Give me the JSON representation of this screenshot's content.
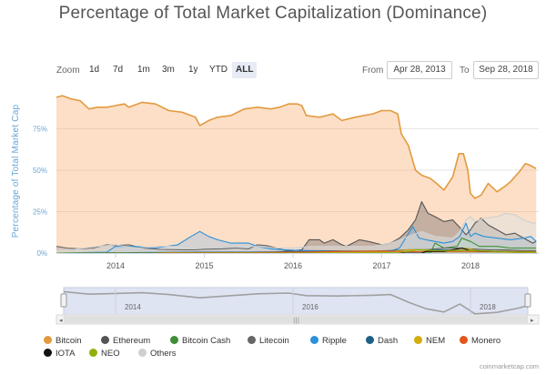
{
  "chart_data": {
    "type": "area",
    "title": "Percentage of Total Market Capitalization (Dominance)",
    "ylabel": "Percentage of Total Market Cap",
    "xlabel": "",
    "ylim": [
      0,
      100
    ],
    "yticks": [
      "0%",
      "25%",
      "50%",
      "75%"
    ],
    "xticks": [
      "2014",
      "2015",
      "2016",
      "2017",
      "2018"
    ],
    "navigator_ticks": [
      "2014",
      "2016",
      "2018"
    ],
    "legend_position": "bottom-left",
    "grid": true,
    "series": [
      {
        "name": "Bitcoin",
        "color": "#f7a35c",
        "stroke": "#e29a3f",
        "points": [
          [
            2013.33,
            94
          ],
          [
            2013.4,
            95
          ],
          [
            2013.5,
            93
          ],
          [
            2013.6,
            92
          ],
          [
            2013.7,
            87
          ],
          [
            2013.8,
            88
          ],
          [
            2013.9,
            88
          ],
          [
            2014.0,
            89
          ],
          [
            2014.1,
            90
          ],
          [
            2014.15,
            88
          ],
          [
            2014.3,
            91
          ],
          [
            2014.45,
            90
          ],
          [
            2014.6,
            86
          ],
          [
            2014.75,
            85
          ],
          [
            2014.9,
            82
          ],
          [
            2014.95,
            77
          ],
          [
            2015.05,
            80
          ],
          [
            2015.15,
            82
          ],
          [
            2015.3,
            83
          ],
          [
            2015.45,
            87
          ],
          [
            2015.6,
            88
          ],
          [
            2015.75,
            87
          ],
          [
            2015.85,
            88
          ],
          [
            2015.95,
            90
          ],
          [
            2016.05,
            90
          ],
          [
            2016.1,
            89
          ],
          [
            2016.15,
            83
          ],
          [
            2016.3,
            82
          ],
          [
            2016.45,
            84
          ],
          [
            2016.55,
            80
          ],
          [
            2016.7,
            82
          ],
          [
            2016.8,
            83
          ],
          [
            2016.9,
            84
          ],
          [
            2017.0,
            86
          ],
          [
            2017.1,
            86
          ],
          [
            2017.18,
            84
          ],
          [
            2017.22,
            72
          ],
          [
            2017.3,
            65
          ],
          [
            2017.38,
            50
          ],
          [
            2017.45,
            47
          ],
          [
            2017.55,
            45
          ],
          [
            2017.62,
            42
          ],
          [
            2017.7,
            38
          ],
          [
            2017.8,
            46
          ],
          [
            2017.87,
            60
          ],
          [
            2017.92,
            60
          ],
          [
            2017.97,
            50
          ],
          [
            2018.0,
            36
          ],
          [
            2018.05,
            33
          ],
          [
            2018.12,
            35
          ],
          [
            2018.2,
            42
          ],
          [
            2018.3,
            37
          ],
          [
            2018.38,
            40
          ],
          [
            2018.45,
            43
          ],
          [
            2018.55,
            49
          ],
          [
            2018.62,
            54
          ],
          [
            2018.67,
            53
          ],
          [
            2018.74,
            51
          ]
        ]
      },
      {
        "name": "Ethereum",
        "color": "#434348",
        "stroke": "#555555",
        "points": [
          [
            2013.33,
            0
          ],
          [
            2015.6,
            0
          ],
          [
            2015.8,
            0.5
          ],
          [
            2016.1,
            2
          ],
          [
            2016.18,
            8
          ],
          [
            2016.3,
            8
          ],
          [
            2016.35,
            6
          ],
          [
            2016.45,
            8
          ],
          [
            2016.55,
            5
          ],
          [
            2016.6,
            4
          ],
          [
            2016.75,
            8
          ],
          [
            2016.85,
            7
          ],
          [
            2017.0,
            5
          ],
          [
            2017.1,
            6
          ],
          [
            2017.2,
            9
          ],
          [
            2017.3,
            14
          ],
          [
            2017.38,
            20
          ],
          [
            2017.45,
            31
          ],
          [
            2017.52,
            24
          ],
          [
            2017.6,
            22
          ],
          [
            2017.7,
            19
          ],
          [
            2017.8,
            20
          ],
          [
            2017.87,
            16
          ],
          [
            2017.95,
            11
          ],
          [
            2018.0,
            14
          ],
          [
            2018.05,
            18
          ],
          [
            2018.12,
            21
          ],
          [
            2018.2,
            17
          ],
          [
            2018.3,
            14
          ],
          [
            2018.4,
            11
          ],
          [
            2018.5,
            12
          ],
          [
            2018.6,
            9
          ],
          [
            2018.7,
            6
          ],
          [
            2018.74,
            7
          ]
        ]
      },
      {
        "name": "Bitcoin Cash",
        "color": "#90ed7d",
        "stroke": "#3e8e36",
        "points": [
          [
            2013.33,
            0
          ],
          [
            2017.55,
            0
          ],
          [
            2017.6,
            6
          ],
          [
            2017.7,
            3
          ],
          [
            2017.85,
            4
          ],
          [
            2017.9,
            9
          ],
          [
            2018.0,
            7
          ],
          [
            2018.1,
            4
          ],
          [
            2018.3,
            4
          ],
          [
            2018.45,
            3
          ],
          [
            2018.6,
            3
          ],
          [
            2018.74,
            3
          ]
        ]
      },
      {
        "name": "Litecoin",
        "color": "#7f7f7f",
        "stroke": "#666666",
        "points": [
          [
            2013.33,
            4
          ],
          [
            2013.45,
            3
          ],
          [
            2013.6,
            2.5
          ],
          [
            2013.75,
            3
          ],
          [
            2013.9,
            5
          ],
          [
            2014.0,
            4.5
          ],
          [
            2014.15,
            5
          ],
          [
            2014.3,
            3
          ],
          [
            2014.5,
            2.2
          ],
          [
            2014.75,
            2
          ],
          [
            2014.9,
            2
          ],
          [
            2015.0,
            2.3
          ],
          [
            2015.2,
            2.5
          ],
          [
            2015.35,
            3
          ],
          [
            2015.5,
            2.5
          ],
          [
            2015.6,
            5
          ],
          [
            2015.7,
            4.5
          ],
          [
            2015.9,
            1.8
          ],
          [
            2016.1,
            1.5
          ],
          [
            2016.4,
            1.3
          ],
          [
            2016.7,
            1.2
          ],
          [
            2016.9,
            1.2
          ],
          [
            2017.1,
            1.5
          ],
          [
            2017.3,
            2
          ],
          [
            2017.5,
            2
          ],
          [
            2017.7,
            3
          ],
          [
            2017.9,
            3
          ],
          [
            2018.0,
            2.5
          ],
          [
            2018.2,
            2
          ],
          [
            2018.4,
            2
          ],
          [
            2018.6,
            1.5
          ],
          [
            2018.74,
            1.5
          ]
        ]
      },
      {
        "name": "Ripple",
        "color": "#7cb5ec",
        "stroke": "#2b90d8",
        "points": [
          [
            2013.33,
            0
          ],
          [
            2013.9,
            0.5
          ],
          [
            2014.0,
            4
          ],
          [
            2014.2,
            4
          ],
          [
            2014.45,
            3
          ],
          [
            2014.7,
            5
          ],
          [
            2014.85,
            10
          ],
          [
            2014.95,
            13
          ],
          [
            2015.05,
            10
          ],
          [
            2015.15,
            8
          ],
          [
            2015.3,
            6
          ],
          [
            2015.5,
            6
          ],
          [
            2015.6,
            4
          ],
          [
            2015.75,
            2.5
          ],
          [
            2015.9,
            2
          ],
          [
            2016.1,
            1.5
          ],
          [
            2016.3,
            1.2
          ],
          [
            2016.5,
            1
          ],
          [
            2016.7,
            1
          ],
          [
            2016.9,
            1
          ],
          [
            2017.1,
            1.2
          ],
          [
            2017.2,
            3
          ],
          [
            2017.28,
            10
          ],
          [
            2017.35,
            16
          ],
          [
            2017.42,
            9
          ],
          [
            2017.5,
            8
          ],
          [
            2017.6,
            7
          ],
          [
            2017.7,
            6
          ],
          [
            2017.8,
            7
          ],
          [
            2017.88,
            10
          ],
          [
            2017.95,
            18
          ],
          [
            2018.0,
            10
          ],
          [
            2018.05,
            12
          ],
          [
            2018.15,
            10
          ],
          [
            2018.3,
            9
          ],
          [
            2018.45,
            8
          ],
          [
            2018.6,
            9
          ],
          [
            2018.68,
            10
          ],
          [
            2018.74,
            7
          ]
        ]
      },
      {
        "name": "Dash",
        "color": "#2a6f97",
        "stroke": "#1f5f87",
        "points": [
          [
            2013.33,
            0
          ],
          [
            2014.9,
            0.5
          ],
          [
            2015.1,
            0.5
          ],
          [
            2015.5,
            0.5
          ],
          [
            2016.0,
            0.8
          ],
          [
            2016.5,
            1
          ],
          [
            2017.0,
            1
          ],
          [
            2017.3,
            2
          ],
          [
            2017.5,
            2
          ],
          [
            2017.7,
            2
          ],
          [
            2017.9,
            1.5
          ],
          [
            2018.1,
            1
          ],
          [
            2018.4,
            0.8
          ],
          [
            2018.74,
            0.6
          ]
        ]
      },
      {
        "name": "NEM",
        "color": "#f1c40f",
        "stroke": "#d4ac0d",
        "points": [
          [
            2013.33,
            0
          ],
          [
            2015.2,
            0
          ],
          [
            2015.5,
            0.1
          ],
          [
            2016.0,
            0.2
          ],
          [
            2016.5,
            0.4
          ],
          [
            2017.0,
            0.5
          ],
          [
            2017.3,
            2
          ],
          [
            2017.5,
            2
          ],
          [
            2017.7,
            1
          ],
          [
            2017.95,
            3
          ],
          [
            2018.1,
            1
          ],
          [
            2018.4,
            0.5
          ],
          [
            2018.74,
            0.3
          ]
        ]
      },
      {
        "name": "Monero",
        "color": "#f15c22",
        "stroke": "#e3561a",
        "points": [
          [
            2013.33,
            0
          ],
          [
            2014.4,
            0
          ],
          [
            2014.6,
            0.3
          ],
          [
            2015.0,
            0.3
          ],
          [
            2015.5,
            0.3
          ],
          [
            2016.0,
            0.5
          ],
          [
            2016.6,
            1
          ],
          [
            2017.0,
            1.2
          ],
          [
            2017.3,
            0.8
          ],
          [
            2017.7,
            1
          ],
          [
            2018.0,
            1
          ],
          [
            2018.4,
            1
          ],
          [
            2018.74,
            0.8
          ]
        ]
      },
      {
        "name": "IOTA",
        "color": "#000000",
        "stroke": "#111111",
        "points": [
          [
            2013.33,
            0
          ],
          [
            2017.45,
            0
          ],
          [
            2017.5,
            1
          ],
          [
            2017.7,
            1
          ],
          [
            2017.9,
            3
          ],
          [
            2018.0,
            1.5
          ],
          [
            2018.3,
            1
          ],
          [
            2018.74,
            0.5
          ]
        ]
      },
      {
        "name": "NEO",
        "color": "#a6d10e",
        "stroke": "#8fb10a",
        "points": [
          [
            2013.33,
            0
          ],
          [
            2016.6,
            0
          ],
          [
            2017.2,
            0.3
          ],
          [
            2017.4,
            2
          ],
          [
            2017.6,
            1.5
          ],
          [
            2017.9,
            1.5
          ],
          [
            2018.1,
            1.5
          ],
          [
            2018.4,
            0.8
          ],
          [
            2018.74,
            0.5
          ]
        ]
      },
      {
        "name": "Others",
        "color": "#e0e0e0",
        "stroke": "#cfcfcf",
        "points": [
          [
            2013.33,
            2
          ],
          [
            2013.5,
            2
          ],
          [
            2013.8,
            4
          ],
          [
            2014.0,
            5
          ],
          [
            2014.1,
            4
          ],
          [
            2014.25,
            3
          ],
          [
            2014.5,
            4
          ],
          [
            2014.7,
            4
          ],
          [
            2014.9,
            3.5
          ],
          [
            2015.1,
            3
          ],
          [
            2015.3,
            4
          ],
          [
            2015.6,
            4
          ],
          [
            2015.8,
            3
          ],
          [
            2016.0,
            3
          ],
          [
            2016.2,
            4
          ],
          [
            2016.5,
            4
          ],
          [
            2016.7,
            4
          ],
          [
            2016.9,
            4
          ],
          [
            2017.1,
            6
          ],
          [
            2017.3,
            10
          ],
          [
            2017.45,
            13
          ],
          [
            2017.6,
            10
          ],
          [
            2017.8,
            9
          ],
          [
            2017.88,
            13
          ],
          [
            2017.95,
            20
          ],
          [
            2018.0,
            22
          ],
          [
            2018.05,
            19
          ],
          [
            2018.15,
            21
          ],
          [
            2018.3,
            22
          ],
          [
            2018.4,
            24
          ],
          [
            2018.5,
            23
          ],
          [
            2018.6,
            20
          ],
          [
            2018.7,
            18
          ],
          [
            2018.74,
            18
          ]
        ]
      }
    ],
    "navigator_series": [
      [
        2013.33,
        94
      ],
      [
        2013.7,
        87
      ],
      [
        2014.0,
        89
      ],
      [
        2014.3,
        91
      ],
      [
        2014.6,
        86
      ],
      [
        2014.95,
        77
      ],
      [
        2015.3,
        83
      ],
      [
        2015.6,
        88
      ],
      [
        2015.95,
        90
      ],
      [
        2016.15,
        83
      ],
      [
        2016.5,
        82
      ],
      [
        2016.9,
        84
      ],
      [
        2017.1,
        86
      ],
      [
        2017.3,
        65
      ],
      [
        2017.5,
        47
      ],
      [
        2017.7,
        38
      ],
      [
        2017.88,
        60
      ],
      [
        2018.05,
        33
      ],
      [
        2018.3,
        37
      ],
      [
        2018.55,
        49
      ],
      [
        2018.62,
        54
      ],
      [
        2018.74,
        51
      ]
    ]
  },
  "zoom": {
    "label": "Zoom",
    "buttons": [
      "1d",
      "7d",
      "1m",
      "3m",
      "1y",
      "YTD",
      "ALL"
    ],
    "active": "ALL"
  },
  "range": {
    "from_label": "From",
    "from_value": "Apr 28, 2013",
    "to_label": "To",
    "to_value": "Sep 28, 2018"
  },
  "credit": "coinmarketcap.com"
}
